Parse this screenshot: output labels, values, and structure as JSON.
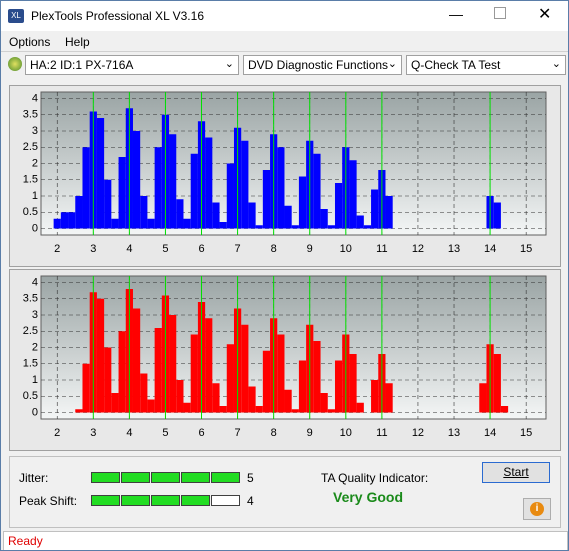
{
  "window": {
    "title": "PlexTools Professional XL V3.16"
  },
  "menu": [
    "Options",
    "Help"
  ],
  "toolbar": {
    "drive": "HA:2 ID:1  PX-716A",
    "function": "DVD Diagnostic Functions",
    "test": "Q-Check TA Test"
  },
  "charts": [
    {
      "type": "bar",
      "color": "#0000ff",
      "marker_color": "#00e000",
      "x": [
        2,
        2.2,
        2.4,
        2.6,
        2.8,
        3,
        3.2,
        3.4,
        3.6,
        3.8,
        4,
        4.2,
        4.4,
        4.6,
        4.8,
        5,
        5.2,
        5.4,
        5.6,
        5.8,
        6,
        6.2,
        6.4,
        6.6,
        6.8,
        7,
        7.2,
        7.4,
        7.6,
        7.8,
        8,
        8.2,
        8.4,
        8.6,
        8.8,
        9,
        9.2,
        9.4,
        9.6,
        9.8,
        10,
        10.2,
        10.4,
        10.6,
        10.8,
        11,
        11.2,
        11.4,
        11.6,
        11.8,
        12,
        12.2,
        12.4,
        12.6,
        12.8,
        13,
        13.2,
        13.4,
        13.6,
        13.8,
        14,
        14.2,
        14.4
      ],
      "values": [
        0.3,
        0.5,
        0.5,
        1.0,
        2.5,
        3.6,
        3.4,
        1.5,
        0.3,
        2.2,
        3.7,
        3.0,
        1.0,
        0.3,
        2.5,
        3.5,
        2.9,
        0.9,
        0.3,
        2.3,
        3.3,
        2.8,
        0.8,
        0.2,
        2.0,
        3.1,
        2.7,
        0.8,
        0.1,
        1.8,
        2.9,
        2.5,
        0.7,
        0.1,
        1.6,
        2.7,
        2.3,
        0.6,
        0.1,
        1.4,
        2.5,
        2.1,
        0.4,
        0.1,
        1.2,
        1.8,
        1.0,
        0,
        0,
        0,
        0,
        0,
        0,
        0,
        0,
        0,
        0,
        0,
        0,
        0,
        1.0,
        0.8,
        0
      ],
      "markers": [
        3,
        4,
        5,
        6,
        7,
        8,
        9,
        10,
        11,
        14
      ],
      "xlim": [
        1.55,
        15.55
      ],
      "xticks": [
        2,
        3,
        4,
        5,
        6,
        7,
        8,
        9,
        10,
        11,
        12,
        13,
        14,
        15
      ],
      "ylim": [
        -0.2,
        4.2
      ],
      "yticks": [
        0,
        0.5,
        1,
        1.5,
        2,
        2.5,
        3,
        3.5,
        4
      ],
      "grid": true
    },
    {
      "type": "bar",
      "color": "#ff0000",
      "marker_color": "#00e000",
      "x": [
        2,
        2.2,
        2.4,
        2.6,
        2.8,
        3,
        3.2,
        3.4,
        3.6,
        3.8,
        4,
        4.2,
        4.4,
        4.6,
        4.8,
        5,
        5.2,
        5.4,
        5.6,
        5.8,
        6,
        6.2,
        6.4,
        6.6,
        6.8,
        7,
        7.2,
        7.4,
        7.6,
        7.8,
        8,
        8.2,
        8.4,
        8.6,
        8.8,
        9,
        9.2,
        9.4,
        9.6,
        9.8,
        10,
        10.2,
        10.4,
        10.6,
        10.8,
        11,
        11.2,
        11.4,
        11.6,
        11.8,
        12,
        12.2,
        12.4,
        12.6,
        12.8,
        13,
        13.2,
        13.4,
        13.6,
        13.8,
        14,
        14.2,
        14.4
      ],
      "values": [
        0,
        0,
        0,
        0.1,
        1.5,
        3.7,
        3.5,
        2.0,
        0.6,
        2.5,
        3.8,
        3.2,
        1.2,
        0.4,
        2.6,
        3.6,
        3.0,
        1.0,
        0.3,
        2.4,
        3.4,
        2.9,
        0.9,
        0.2,
        2.1,
        3.2,
        2.7,
        0.8,
        0.2,
        1.9,
        2.9,
        2.4,
        0.7,
        0.1,
        1.6,
        2.7,
        2.2,
        0.6,
        0.1,
        1.6,
        2.4,
        1.8,
        0.3,
        0,
        1.0,
        1.8,
        0.9,
        0,
        0,
        0,
        0,
        0,
        0,
        0,
        0,
        0,
        0,
        0,
        0,
        0.9,
        2.1,
        1.8,
        0.2
      ],
      "markers": [
        3,
        4,
        5,
        6,
        7,
        8,
        9,
        10,
        11,
        14
      ],
      "xlim": [
        1.55,
        15.55
      ],
      "xticks": [
        2,
        3,
        4,
        5,
        6,
        7,
        8,
        9,
        10,
        11,
        12,
        13,
        14,
        15
      ],
      "ylim": [
        -0.2,
        4.2
      ],
      "yticks": [
        0,
        0.5,
        1,
        1.5,
        2,
        2.5,
        3,
        3.5,
        4
      ],
      "grid": true
    }
  ],
  "indicators": {
    "jitter": {
      "label": "Jitter:",
      "value": 5
    },
    "peak_shift": {
      "label": "Peak Shift:",
      "value": 4
    }
  },
  "quality": {
    "label": "TA Quality Indicator:",
    "rating": "Very Good"
  },
  "buttons": {
    "start": "Start"
  },
  "status": "Ready"
}
